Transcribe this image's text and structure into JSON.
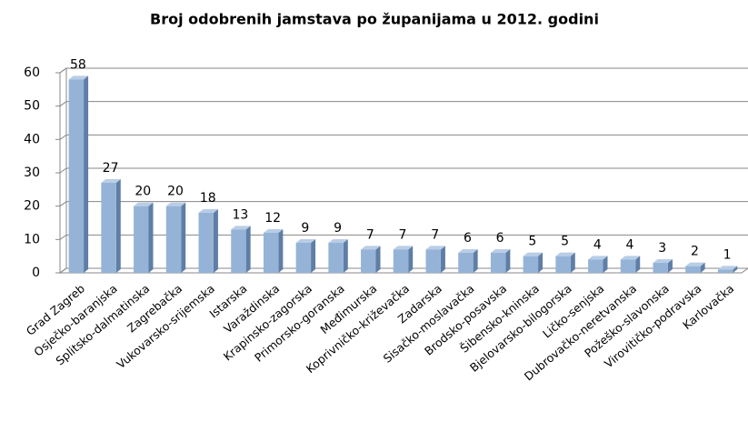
{
  "chart_data": {
    "type": "bar",
    "title": "Broj odobrenih jamstava po županijama u 2012. godini",
    "categories": [
      "Grad Zagreb",
      "Osječko-baranjska",
      "Splitsko-dalmatinska",
      "Zagrebačka",
      "Vukovarsko-srijemska",
      "Istarska",
      "Varaždinska",
      "Krapinsko-zagorska",
      "Primorsko-goranska",
      "Međimurska",
      "Koprivničko-križevačka",
      "Zadarska",
      "Sisačko-moslavačka",
      "Brodsko-posavska",
      "Šibensko-kninska",
      "Bjelovarsko-bilogorska",
      "Ličko-senjska",
      "Dubrovačko-neretvanska",
      "Požeško-slavonska",
      "Virovitičko-podravska",
      "Karlovačka"
    ],
    "values": [
      58,
      27,
      20,
      20,
      18,
      13,
      12,
      9,
      9,
      7,
      7,
      7,
      6,
      6,
      5,
      5,
      4,
      4,
      3,
      2,
      1
    ],
    "color": "#95b3d7",
    "ylim": [
      0,
      60
    ],
    "yticks": [
      0,
      10,
      20,
      30,
      40,
      50,
      60
    ],
    "grid": true
  }
}
